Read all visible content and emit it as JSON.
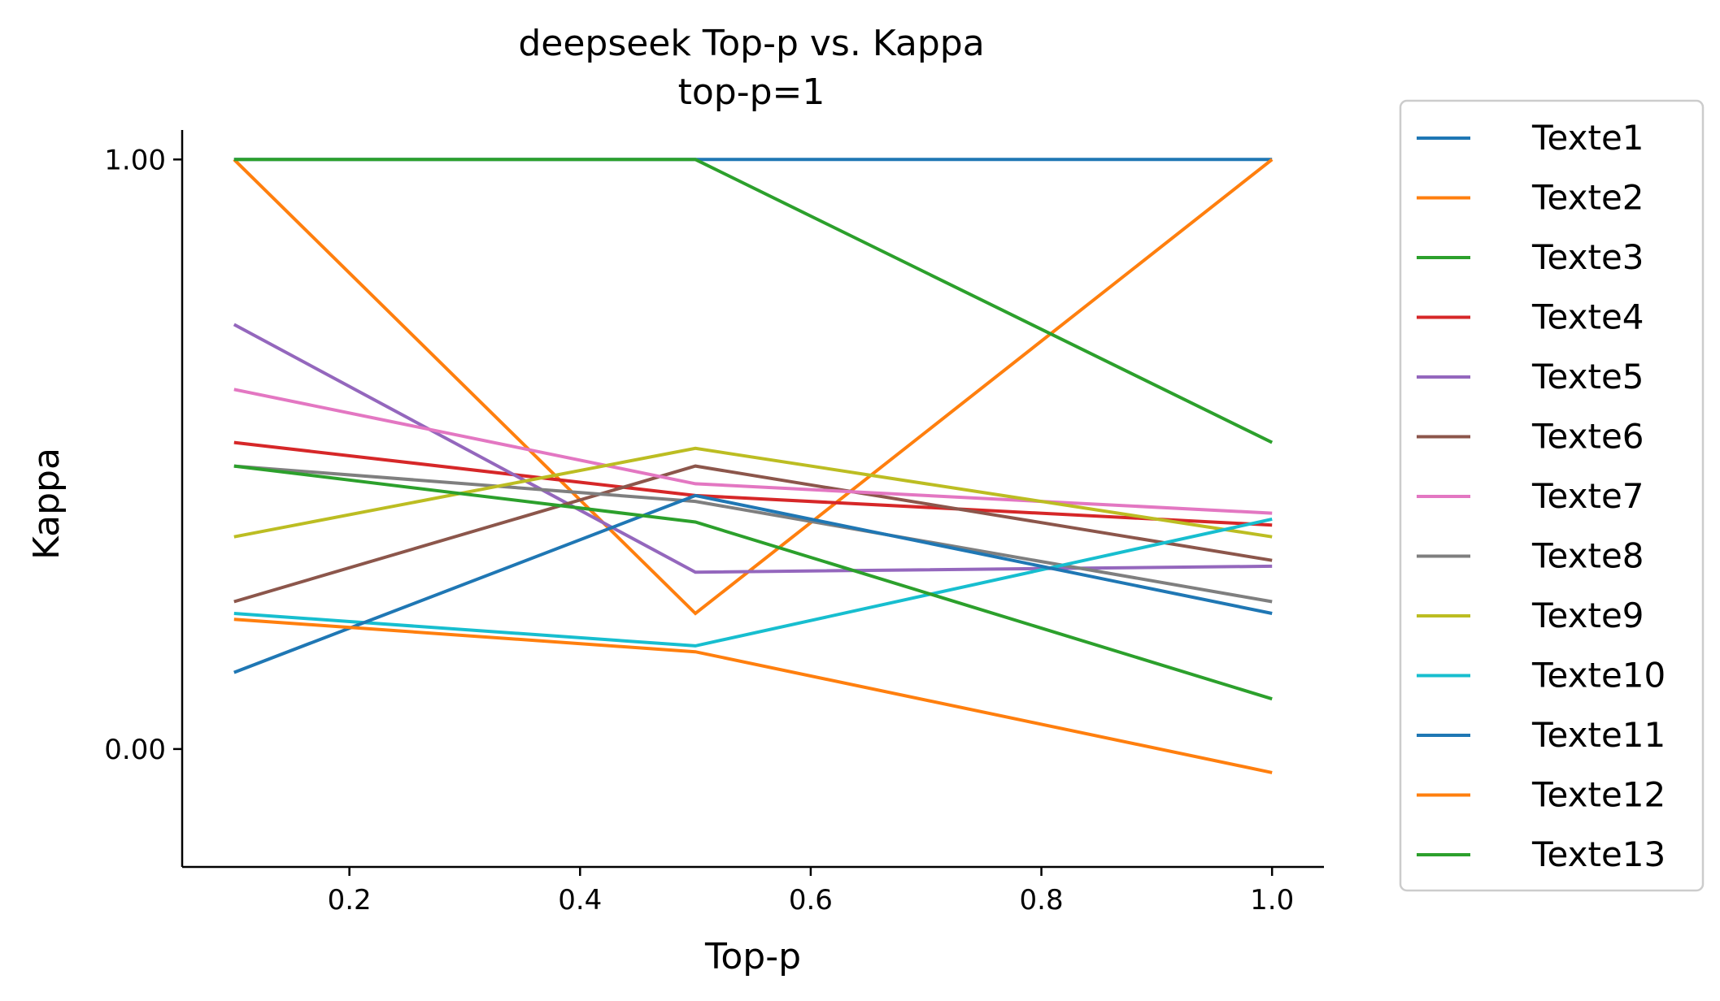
{
  "chart_data": {
    "type": "line",
    "title": "deepseek Top-p vs. Kappa",
    "subtitle": "top-p=1",
    "xlabel": "Top-p",
    "ylabel": "Kappa",
    "xlim": [
      0.055,
      1.045
    ],
    "ylim": [
      -0.2,
      1.05
    ],
    "xticks": [
      0.2,
      0.4,
      0.6,
      0.8,
      1.0
    ],
    "xtick_labels": [
      "0.2",
      "0.4",
      "0.6",
      "0.8",
      "1.0"
    ],
    "yticks": [
      0.0,
      1.0
    ],
    "ytick_labels": [
      "0.00",
      "1.00"
    ],
    "grid": false,
    "legend_position": "outside-right",
    "x": [
      0.1,
      0.5,
      1.0
    ],
    "series": [
      {
        "name": "Texte1",
        "color": "#1f77b4",
        "values": [
          1.0,
          1.0,
          1.0
        ]
      },
      {
        "name": "Texte2",
        "color": "#ff7f0e",
        "values": [
          1.0,
          0.23,
          1.0
        ]
      },
      {
        "name": "Texte3",
        "color": "#2ca02c",
        "values": [
          1.0,
          1.0,
          0.52
        ]
      },
      {
        "name": "Texte4",
        "color": "#d62728",
        "values": [
          0.52,
          0.43,
          0.38
        ]
      },
      {
        "name": "Texte5",
        "color": "#9467bd",
        "values": [
          0.72,
          0.3,
          0.31
        ]
      },
      {
        "name": "Texte6",
        "color": "#8c564b",
        "values": [
          0.25,
          0.48,
          0.32
        ]
      },
      {
        "name": "Texte7",
        "color": "#e377c2",
        "values": [
          0.61,
          0.45,
          0.4
        ]
      },
      {
        "name": "Texte8",
        "color": "#7f7f7f",
        "values": [
          0.48,
          0.42,
          0.25
        ]
      },
      {
        "name": "Texte9",
        "color": "#bcbd22",
        "values": [
          0.36,
          0.51,
          0.36
        ]
      },
      {
        "name": "Texte10",
        "color": "#17becf",
        "values": [
          0.23,
          0.175,
          0.39
        ]
      },
      {
        "name": "Texte11",
        "color": "#1f77b4",
        "values": [
          0.13,
          0.43,
          0.23
        ]
      },
      {
        "name": "Texte12",
        "color": "#ff7f0e",
        "values": [
          0.22,
          0.165,
          -0.04
        ]
      },
      {
        "name": "Texte13",
        "color": "#2ca02c",
        "values": [
          0.48,
          0.385,
          0.085
        ]
      }
    ]
  }
}
